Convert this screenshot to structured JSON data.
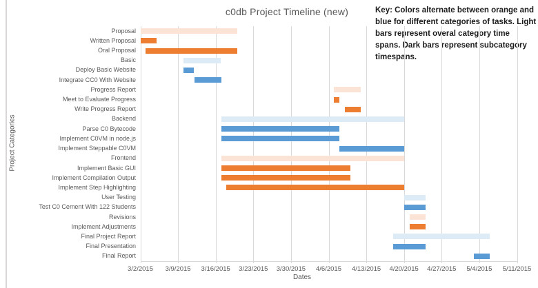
{
  "chart_data": {
    "type": "bar",
    "variant": "gantt-horizontal",
    "title": "c0db Project Timeline (new)",
    "xlabel": "Dates",
    "ylabel": "Project Categories",
    "key_note": "Key: Colors alternate between orange and blue for different categories of tasks. Light bars represent overal category time spans. Dark bars represent subcategory timespans.",
    "grid": true,
    "legend_position": "top-right",
    "x_range": [
      "3/2/2015",
      "5/11/2015"
    ],
    "x_ticks": [
      "3/2/2015",
      "3/9/2015",
      "3/16/2015",
      "3/23/2015",
      "3/30/2015",
      "4/6/2015",
      "4/13/2015",
      "4/20/2015",
      "4/27/2015",
      "5/4/2015",
      "5/11/2015"
    ],
    "colors": {
      "orange_dark": "#ED7D31",
      "orange_light": "#FBE3D6",
      "blue_dark": "#5B9BD5",
      "blue_light": "#DDEBF7",
      "gridline": "#D9D9D9",
      "axis_text": "#595959",
      "title_text": "#595959"
    },
    "tasks": [
      {
        "label": "Proposal",
        "style": "orange_light",
        "start": "3/2/2015",
        "end": "3/20/2015"
      },
      {
        "label": "Written Proposal",
        "style": "orange_dark",
        "start": "3/2/2015",
        "end": "3/5/2015"
      },
      {
        "label": "Oral Proposal",
        "style": "orange_dark",
        "start": "3/3/2015",
        "end": "3/20/2015"
      },
      {
        "label": "Basic",
        "style": "blue_light",
        "start": "3/10/2015",
        "end": "3/17/2015"
      },
      {
        "label": "Deploy Basic Website",
        "style": "blue_dark",
        "start": "3/10/2015",
        "end": "3/12/2015"
      },
      {
        "label": "Integrate CC0 With Website",
        "style": "blue_dark",
        "start": "3/12/2015",
        "end": "3/17/2015"
      },
      {
        "label": "Progress Report",
        "style": "orange_light",
        "start": "4/7/2015",
        "end": "4/12/2015"
      },
      {
        "label": "Meet to Evaluate Progress",
        "style": "orange_dark",
        "start": "4/7/2015",
        "end": "4/8/2015"
      },
      {
        "label": "Write Progress Report",
        "style": "orange_dark",
        "start": "4/9/2015",
        "end": "4/12/2015"
      },
      {
        "label": "Backend",
        "style": "blue_light",
        "start": "3/17/2015",
        "end": "4/20/2015"
      },
      {
        "label": "Parse C0 Bytecode",
        "style": "blue_dark",
        "start": "3/17/2015",
        "end": "4/8/2015"
      },
      {
        "label": "Implement C0VM in node.js",
        "style": "blue_dark",
        "start": "3/17/2015",
        "end": "4/8/2015"
      },
      {
        "label": "Implement Steppable C0VM",
        "style": "blue_dark",
        "start": "4/8/2015",
        "end": "4/20/2015"
      },
      {
        "label": "Frontend",
        "style": "orange_light",
        "start": "3/17/2015",
        "end": "4/20/2015"
      },
      {
        "label": "Implement Basic GUI",
        "style": "orange_dark",
        "start": "3/17/2015",
        "end": "4/10/2015"
      },
      {
        "label": "Implement Compilation Output",
        "style": "orange_dark",
        "start": "3/17/2015",
        "end": "4/10/2015"
      },
      {
        "label": "Implement Step Highlighting",
        "style": "orange_dark",
        "start": "3/18/2015",
        "end": "4/20/2015"
      },
      {
        "label": "User Testing",
        "style": "blue_light",
        "start": "4/20/2015",
        "end": "4/24/2015"
      },
      {
        "label": "Test C0 Cement With 122 Students",
        "style": "blue_dark",
        "start": "4/20/2015",
        "end": "4/24/2015"
      },
      {
        "label": "Revisions",
        "style": "orange_light",
        "start": "4/21/2015",
        "end": "4/24/2015"
      },
      {
        "label": "Implement Adjustments",
        "style": "orange_dark",
        "start": "4/21/2015",
        "end": "4/24/2015"
      },
      {
        "label": "Final Project Report",
        "style": "blue_light",
        "start": "4/18/2015",
        "end": "5/6/2015"
      },
      {
        "label": "Final Presentation",
        "style": "blue_dark",
        "start": "4/18/2015",
        "end": "4/24/2015"
      },
      {
        "label": "Final Report",
        "style": "blue_dark",
        "start": "5/3/2015",
        "end": "5/6/2015"
      }
    ]
  }
}
